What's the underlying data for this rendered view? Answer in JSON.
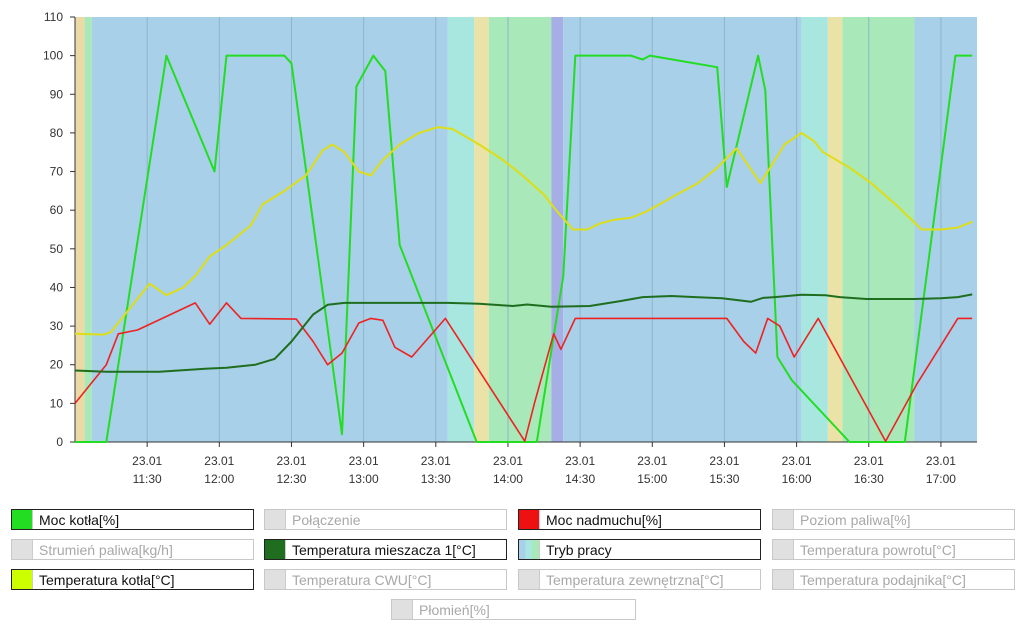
{
  "chart_data": {
    "type": "line",
    "ylim": [
      0,
      110
    ],
    "yticks": [
      0,
      10,
      20,
      30,
      40,
      50,
      60,
      70,
      80,
      90,
      100,
      110
    ],
    "xlim": [
      "11:00",
      "17:15"
    ],
    "xticks": [
      {
        "time": "11:30",
        "date": "23.01",
        "label": "11:30"
      },
      {
        "time": "12:00",
        "date": "23.01",
        "label": "12:00"
      },
      {
        "time": "12:30",
        "date": "23.01",
        "label": "12:30"
      },
      {
        "time": "13:00",
        "date": "23.01",
        "label": "13:00"
      },
      {
        "time": "13:30",
        "date": "23.01",
        "label": "13:30"
      },
      {
        "time": "14:00",
        "date": "23.01",
        "label": "14:00"
      },
      {
        "time": "14:30",
        "date": "23.01",
        "label": "14:30"
      },
      {
        "time": "15:00",
        "date": "23.01",
        "label": "15:00"
      },
      {
        "time": "15:30",
        "date": "23.01",
        "label": "15:30"
      },
      {
        "time": "16:00",
        "date": "23.01",
        "label": "16:00"
      },
      {
        "time": "16:30",
        "date": "23.01",
        "label": "16:30"
      },
      {
        "time": "17:00",
        "date": "23.01",
        "label": "17:00"
      }
    ],
    "grid": "vertical",
    "background_bands": [
      {
        "start": "11:00",
        "end": "11:04",
        "color": "#ebd9a6"
      },
      {
        "start": "11:04",
        "end": "11:07",
        "color": "#a9e8b8"
      },
      {
        "start": "11:07",
        "end": "13:35",
        "color": "#a8d0e8"
      },
      {
        "start": "13:35",
        "end": "13:46",
        "color": "#a8e6e0"
      },
      {
        "start": "13:46",
        "end": "13:52",
        "color": "#ebe2a8"
      },
      {
        "start": "13:52",
        "end": "14:18",
        "color": "#a9e8b8"
      },
      {
        "start": "14:18",
        "end": "14:23",
        "color": "#a6aee6"
      },
      {
        "start": "14:23",
        "end": "16:02",
        "color": "#a8d0e8"
      },
      {
        "start": "16:02",
        "end": "16:13",
        "color": "#a8e6e0"
      },
      {
        "start": "16:13",
        "end": "16:19",
        "color": "#ebe2a8"
      },
      {
        "start": "16:19",
        "end": "16:49",
        "color": "#a9e8b8"
      },
      {
        "start": "16:49",
        "end": "17:15",
        "color": "#a8d0e8"
      }
    ],
    "series": [
      {
        "name": "Moc kotła[%]",
        "color": "#22dd22",
        "width": 2,
        "points": [
          [
            "11:00",
            0
          ],
          [
            "11:13",
            0
          ],
          [
            "11:38",
            100
          ],
          [
            "11:58",
            70
          ],
          [
            "12:03",
            100
          ],
          [
            "12:27",
            100
          ],
          [
            "12:30",
            98
          ],
          [
            "12:51",
            2
          ],
          [
            "12:57",
            92
          ],
          [
            "13:04",
            100
          ],
          [
            "13:09",
            96
          ],
          [
            "13:15",
            51
          ],
          [
            "13:47",
            0
          ],
          [
            "14:03",
            0
          ],
          [
            "14:12",
            0
          ],
          [
            "14:23",
            43
          ],
          [
            "14:28",
            100
          ],
          [
            "14:51",
            100
          ],
          [
            "14:56",
            99
          ],
          [
            "14:59",
            100
          ],
          [
            "15:27",
            97
          ],
          [
            "15:31",
            66
          ],
          [
            "15:44",
            100
          ],
          [
            "15:47",
            91
          ],
          [
            "15:52",
            22
          ],
          [
            "15:58",
            16
          ],
          [
            "16:22",
            0
          ],
          [
            "16:39",
            0
          ],
          [
            "16:45",
            0
          ],
          [
            "17:06",
            100
          ],
          [
            "17:13",
            100
          ]
        ]
      },
      {
        "name": "Moc nadmuchu[%]",
        "color": "#ee2222",
        "width": 1.6,
        "points": [
          [
            "11:00",
            10
          ],
          [
            "11:13",
            20
          ],
          [
            "11:18",
            28
          ],
          [
            "11:26",
            29
          ],
          [
            "11:50",
            36
          ],
          [
            "11:56",
            30.5
          ],
          [
            "12:03",
            36
          ],
          [
            "12:09",
            32
          ],
          [
            "12:32",
            31.8
          ],
          [
            "12:39",
            26
          ],
          [
            "12:45",
            20
          ],
          [
            "12:51",
            23
          ],
          [
            "12:58",
            30.8
          ],
          [
            "13:03",
            32
          ],
          [
            "13:08",
            31.5
          ],
          [
            "13:13",
            24.5
          ],
          [
            "13:20",
            22
          ],
          [
            "13:34",
            32
          ],
          [
            "14:07",
            0.2
          ],
          [
            "14:11",
            10
          ],
          [
            "14:19",
            28
          ],
          [
            "14:22",
            24
          ],
          [
            "14:28",
            32
          ],
          [
            "15:07",
            32
          ],
          [
            "15:31",
            32
          ],
          [
            "15:38",
            26
          ],
          [
            "15:43",
            23
          ],
          [
            "15:48",
            32
          ],
          [
            "15:53",
            30
          ],
          [
            "15:59",
            22
          ],
          [
            "16:09",
            32
          ],
          [
            "16:37",
            0.2
          ],
          [
            "16:50",
            15
          ],
          [
            "17:07",
            32
          ],
          [
            "17:13",
            32
          ]
        ]
      },
      {
        "name": "Tryb pracy",
        "color": "#000000",
        "width": 0,
        "legend_only": true,
        "points": []
      },
      {
        "name": "Temperatura mieszacza 1[°C]",
        "color": "#1f6e1f",
        "width": 2,
        "points": [
          [
            "11:00",
            18.5
          ],
          [
            "11:13",
            18.2
          ],
          [
            "11:35",
            18.2
          ],
          [
            "11:55",
            19
          ],
          [
            "12:03",
            19.2
          ],
          [
            "12:15",
            20
          ],
          [
            "12:23",
            21.5
          ],
          [
            "12:30",
            26
          ],
          [
            "12:39",
            33
          ],
          [
            "12:45",
            35.5
          ],
          [
            "12:52",
            36
          ],
          [
            "13:15",
            36
          ],
          [
            "13:35",
            36
          ],
          [
            "13:48",
            35.8
          ],
          [
            "14:02",
            35.2
          ],
          [
            "14:08",
            35.6
          ],
          [
            "14:18",
            35
          ],
          [
            "14:34",
            35.2
          ],
          [
            "14:47",
            36.5
          ],
          [
            "14:56",
            37.5
          ],
          [
            "15:08",
            37.8
          ],
          [
            "15:18",
            37.5
          ],
          [
            "15:29",
            37.2
          ],
          [
            "15:41",
            36.3
          ],
          [
            "15:46",
            37.3
          ],
          [
            "15:51",
            37.5
          ],
          [
            "16:02",
            38.1
          ],
          [
            "16:12",
            38
          ],
          [
            "16:18",
            37.5
          ],
          [
            "16:29",
            37
          ],
          [
            "16:49",
            37
          ],
          [
            "17:00",
            37.2
          ],
          [
            "17:07",
            37.5
          ],
          [
            "17:13",
            38.2
          ]
        ]
      },
      {
        "name": "Temperatura kotła[°C]",
        "color": "#dede16",
        "width": 2,
        "points": [
          [
            "11:00",
            28
          ],
          [
            "11:12",
            27.8
          ],
          [
            "11:15",
            28.5
          ],
          [
            "11:31",
            41
          ],
          [
            "11:38",
            38
          ],
          [
            "11:45",
            40
          ],
          [
            "11:50",
            43
          ],
          [
            "11:56",
            48
          ],
          [
            "12:03",
            51
          ],
          [
            "12:13",
            56
          ],
          [
            "12:18",
            61.5
          ],
          [
            "12:27",
            65
          ],
          [
            "12:36",
            69
          ],
          [
            "12:43",
            75.5
          ],
          [
            "12:47",
            77
          ],
          [
            "12:52",
            75
          ],
          [
            "12:58",
            70
          ],
          [
            "13:03",
            69
          ],
          [
            "13:08",
            73
          ],
          [
            "13:15",
            77
          ],
          [
            "13:23",
            80
          ],
          [
            "13:31",
            81.5
          ],
          [
            "13:37",
            81
          ],
          [
            "13:48",
            77
          ],
          [
            "13:58",
            73
          ],
          [
            "14:06",
            69
          ],
          [
            "14:15",
            64
          ],
          [
            "14:20",
            60
          ],
          [
            "14:27",
            55
          ],
          [
            "14:33",
            55
          ],
          [
            "14:38",
            56.5
          ],
          [
            "14:44",
            57.5
          ],
          [
            "14:51",
            58
          ],
          [
            "14:57",
            59.5
          ],
          [
            "15:03",
            61.5
          ],
          [
            "15:10",
            64
          ],
          [
            "15:19",
            67
          ],
          [
            "15:27",
            71
          ],
          [
            "15:35",
            76
          ],
          [
            "15:45",
            67
          ],
          [
            "15:55",
            77
          ],
          [
            "16:02",
            80
          ],
          [
            "16:07",
            78
          ],
          [
            "16:11",
            75
          ],
          [
            "16:22",
            71
          ],
          [
            "16:31",
            67
          ],
          [
            "16:42",
            61
          ],
          [
            "16:52",
            55
          ],
          [
            "17:00",
            55
          ],
          [
            "17:07",
            55.5
          ],
          [
            "17:13",
            57
          ]
        ]
      }
    ],
    "legend": [
      {
        "label": "Moc kotła[%]",
        "active": true,
        "swatch": "#22dd22"
      },
      {
        "label": "Połączenie",
        "active": false,
        "swatch": "#e0e0e0"
      },
      {
        "label": "Moc nadmuchu[%]",
        "active": true,
        "swatch": "#ee1111"
      },
      {
        "label": "Poziom paliwa[%]",
        "active": false,
        "swatch": "#e0e0e0"
      },
      {
        "label": "Strumień paliwa[kg/h]",
        "active": false,
        "swatch": "#e0e0e0"
      },
      {
        "label": "Temperatura mieszacza 1[°C]",
        "active": true,
        "swatch": "#1f6e1f"
      },
      {
        "label": "Tryb pracy",
        "active": true,
        "swatch": "multi"
      },
      {
        "label": "Temperatura powrotu[°C]",
        "active": false,
        "swatch": "#e0e0e0"
      },
      {
        "label": "Temperatura kotła[°C]",
        "active": true,
        "swatch": "#ccff00"
      },
      {
        "label": "Temperatura CWU[°C]",
        "active": false,
        "swatch": "#e0e0e0"
      },
      {
        "label": "Temperatura zewnętrzna[°C]",
        "active": false,
        "swatch": "#e0e0e0"
      },
      {
        "label": "Temperatura podajnika[°C]",
        "active": false,
        "swatch": "#e0e0e0"
      },
      {
        "label": "Płomień[%]",
        "active": false,
        "swatch": "#e0e0e0"
      }
    ]
  }
}
